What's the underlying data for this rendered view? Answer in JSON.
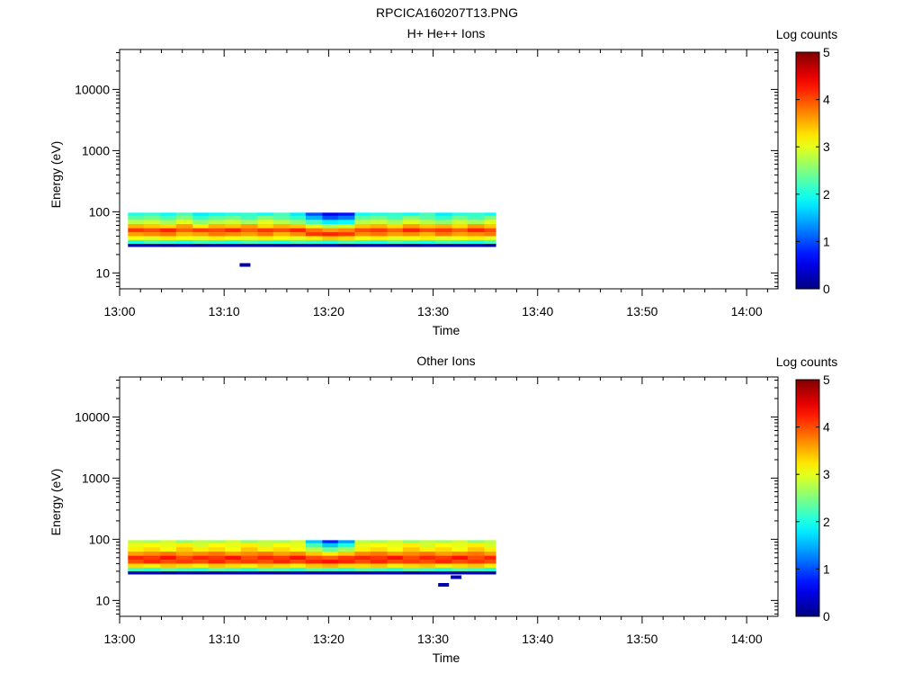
{
  "figure_title": "RPCICA160207T13.PNG",
  "chart_data": [
    {
      "type": "heatmap",
      "title": "H+ He++ Ions",
      "xlabel": "Time",
      "ylabel": "Energy (eV)",
      "x_ticks": [
        "13:00",
        "13:10",
        "13:20",
        "13:30",
        "13:40",
        "13:50",
        "14:00"
      ],
      "x_range_minutes": [
        0,
        63
      ],
      "y_scale": "log",
      "y_ticks": [
        {
          "value": 10,
          "label": "10"
        },
        {
          "value": 100,
          "label": "100"
        },
        {
          "value": 1000,
          "label": "1000"
        },
        {
          "value": 10000,
          "label": "10000"
        }
      ],
      "y_range": [
        5.5,
        45000
      ],
      "colorbar": {
        "label": "Log counts",
        "range": [
          0,
          5
        ],
        "ticks": [
          "0",
          "1",
          "2",
          "3",
          "4",
          "5"
        ]
      },
      "data_time_range_minutes": [
        0.8,
        36
      ],
      "energy_levels_eV": [
        93,
        80,
        68,
        58,
        50,
        43,
        37,
        32,
        28
      ],
      "time_bins": [
        {
          "t": 0.8,
          "v": [
            2.0,
            2.3,
            2.8,
            3.5,
            4.1,
            3.6,
            3.1,
            2.0,
            0.3
          ]
        },
        {
          "t": 2.3,
          "v": [
            2.1,
            2.4,
            2.9,
            3.4,
            4.0,
            3.7,
            3.0,
            2.2,
            0.3
          ]
        },
        {
          "t": 3.9,
          "v": [
            1.9,
            2.2,
            2.7,
            3.3,
            4.2,
            3.8,
            3.2,
            2.1,
            0.2
          ]
        },
        {
          "t": 5.4,
          "v": [
            2.2,
            2.5,
            3.0,
            3.6,
            3.9,
            3.5,
            3.1,
            2.0,
            0.3
          ]
        },
        {
          "t": 7.0,
          "v": [
            1.8,
            2.1,
            2.6,
            3.2,
            4.1,
            3.6,
            3.0,
            2.2,
            0.2
          ]
        },
        {
          "t": 8.5,
          "v": [
            1.9,
            2.3,
            2.8,
            3.5,
            4.0,
            3.8,
            3.2,
            2.1,
            0.3
          ]
        },
        {
          "t": 10.1,
          "v": [
            2.0,
            2.4,
            2.9,
            3.4,
            4.2,
            3.7,
            3.1,
            2.0,
            0.3
          ]
        },
        {
          "t": 11.6,
          "v": [
            2.1,
            2.2,
            2.7,
            3.6,
            3.9,
            3.6,
            3.0,
            2.2,
            0.3
          ]
        },
        {
          "t": 13.2,
          "v": [
            1.9,
            2.5,
            3.0,
            3.3,
            4.1,
            3.8,
            3.2,
            2.1,
            0.3
          ]
        },
        {
          "t": 14.7,
          "v": [
            2.2,
            2.3,
            2.8,
            3.5,
            4.0,
            3.5,
            3.1,
            2.0,
            0.2
          ]
        },
        {
          "t": 16.3,
          "v": [
            1.8,
            2.1,
            2.6,
            3.4,
            4.2,
            3.7,
            3.0,
            2.2,
            0.3
          ]
        },
        {
          "t": 17.8,
          "v": [
            1.0,
            1.5,
            2.2,
            3.0,
            3.8,
            4.1,
            3.2,
            2.1,
            0.3
          ]
        },
        {
          "t": 19.4,
          "v": [
            0.6,
            1.0,
            1.8,
            2.7,
            3.6,
            4.2,
            3.4,
            2.0,
            0.3
          ]
        },
        {
          "t": 20.9,
          "v": [
            0.7,
            1.2,
            1.9,
            2.9,
            3.7,
            4.1,
            3.3,
            2.2,
            0.2
          ]
        },
        {
          "t": 22.5,
          "v": [
            1.9,
            2.3,
            2.8,
            3.4,
            4.0,
            3.7,
            3.1,
            2.1,
            0.3
          ]
        },
        {
          "t": 24.0,
          "v": [
            2.0,
            2.4,
            2.9,
            3.5,
            4.1,
            3.8,
            3.2,
            2.0,
            0.3
          ]
        },
        {
          "t": 25.6,
          "v": [
            2.1,
            2.2,
            2.7,
            3.3,
            3.9,
            3.6,
            3.0,
            2.2,
            0.3
          ]
        },
        {
          "t": 27.1,
          "v": [
            1.9,
            2.5,
            3.0,
            3.6,
            4.2,
            3.7,
            3.1,
            2.1,
            0.2
          ]
        },
        {
          "t": 28.7,
          "v": [
            2.2,
            2.3,
            2.8,
            3.4,
            4.0,
            3.5,
            3.2,
            2.0,
            0.3
          ]
        },
        {
          "t": 30.2,
          "v": [
            1.8,
            2.1,
            2.6,
            3.5,
            4.1,
            3.8,
            3.0,
            2.2,
            0.3
          ]
        },
        {
          "t": 31.8,
          "v": [
            2.0,
            2.4,
            2.9,
            3.3,
            3.9,
            3.6,
            3.1,
            2.1,
            0.3
          ]
        },
        {
          "t": 33.3,
          "v": [
            2.1,
            2.2,
            2.7,
            3.6,
            4.2,
            3.7,
            3.2,
            2.0,
            0.3
          ]
        },
        {
          "t": 34.9,
          "v": [
            1.9,
            2.5,
            3.0,
            3.4,
            4.0,
            3.8,
            3.0,
            2.2,
            0.2
          ]
        }
      ],
      "isolated_points": [
        {
          "t": 12.0,
          "e": 13.5,
          "v": 0.2
        }
      ]
    },
    {
      "type": "heatmap",
      "title": "Other Ions",
      "xlabel": "Time",
      "ylabel": "Energy (eV)",
      "x_ticks": [
        "13:00",
        "13:10",
        "13:20",
        "13:30",
        "13:40",
        "13:50",
        "14:00"
      ],
      "x_range_minutes": [
        0,
        63
      ],
      "y_scale": "log",
      "y_ticks": [
        {
          "value": 10,
          "label": "10"
        },
        {
          "value": 100,
          "label": "100"
        },
        {
          "value": 1000,
          "label": "1000"
        },
        {
          "value": 10000,
          "label": "10000"
        }
      ],
      "y_range": [
        5.5,
        45000
      ],
      "colorbar": {
        "label": "Log counts",
        "range": [
          0,
          5
        ],
        "ticks": [
          "0",
          "1",
          "2",
          "3",
          "4",
          "5"
        ]
      },
      "data_time_range_minutes": [
        0.8,
        36
      ],
      "energy_levels_eV": [
        93,
        80,
        68,
        58,
        50,
        43,
        37,
        32,
        28
      ],
      "time_bins": [
        {
          "t": 0.8,
          "v": [
            2.8,
            3.0,
            3.2,
            3.6,
            4.2,
            4.0,
            3.3,
            2.2,
            0.3
          ]
        },
        {
          "t": 2.3,
          "v": [
            2.7,
            3.1,
            3.3,
            3.7,
            4.1,
            4.2,
            3.2,
            2.1,
            0.3
          ]
        },
        {
          "t": 3.9,
          "v": [
            2.9,
            3.0,
            3.1,
            3.8,
            4.3,
            4.0,
            3.4,
            2.3,
            0.2
          ]
        },
        {
          "t": 5.4,
          "v": [
            2.6,
            3.2,
            3.4,
            3.6,
            4.0,
            4.1,
            3.3,
            2.2,
            0.3
          ]
        },
        {
          "t": 7.0,
          "v": [
            2.8,
            2.9,
            3.2,
            3.7,
            4.2,
            4.0,
            3.2,
            2.1,
            0.2
          ]
        },
        {
          "t": 8.5,
          "v": [
            2.7,
            3.1,
            3.3,
            3.8,
            4.1,
            4.2,
            3.4,
            2.3,
            0.3
          ]
        },
        {
          "t": 10.1,
          "v": [
            2.9,
            3.0,
            3.1,
            3.6,
            4.3,
            4.0,
            3.3,
            2.2,
            0.3
          ]
        },
        {
          "t": 11.6,
          "v": [
            2.6,
            3.2,
            3.4,
            3.7,
            4.0,
            4.1,
            3.2,
            2.1,
            0.3
          ]
        },
        {
          "t": 13.2,
          "v": [
            2.8,
            2.9,
            3.2,
            3.8,
            4.2,
            4.0,
            3.4,
            2.3,
            0.3
          ]
        },
        {
          "t": 14.7,
          "v": [
            2.7,
            3.1,
            3.3,
            3.6,
            4.1,
            4.2,
            3.3,
            2.2,
            0.2
          ]
        },
        {
          "t": 16.3,
          "v": [
            2.9,
            3.0,
            3.1,
            3.7,
            4.3,
            4.0,
            3.2,
            2.1,
            0.3
          ]
        },
        {
          "t": 17.8,
          "v": [
            1.6,
            2.2,
            2.8,
            3.4,
            4.0,
            4.2,
            3.4,
            2.3,
            0.3
          ]
        },
        {
          "t": 19.4,
          "v": [
            0.8,
            1.6,
            2.4,
            3.2,
            3.9,
            4.3,
            3.5,
            2.2,
            0.3
          ]
        },
        {
          "t": 20.9,
          "v": [
            1.4,
            2.0,
            2.7,
            3.4,
            4.1,
            4.2,
            3.3,
            2.1,
            0.2
          ]
        },
        {
          "t": 22.5,
          "v": [
            2.8,
            3.0,
            3.2,
            3.7,
            4.2,
            4.0,
            3.3,
            2.3,
            0.3
          ]
        },
        {
          "t": 24.0,
          "v": [
            2.7,
            3.1,
            3.3,
            3.8,
            4.1,
            4.2,
            3.4,
            2.2,
            0.3
          ]
        },
        {
          "t": 25.6,
          "v": [
            2.9,
            3.0,
            3.1,
            3.6,
            4.3,
            4.0,
            3.2,
            2.1,
            0.3
          ]
        },
        {
          "t": 27.1,
          "v": [
            2.6,
            3.2,
            3.4,
            3.7,
            4.0,
            4.1,
            3.3,
            2.3,
            0.2
          ]
        },
        {
          "t": 28.7,
          "v": [
            2.8,
            2.9,
            3.2,
            3.8,
            4.2,
            4.0,
            3.4,
            2.2,
            0.3
          ]
        },
        {
          "t": 30.2,
          "v": [
            2.7,
            3.1,
            3.3,
            3.6,
            4.1,
            4.2,
            3.2,
            2.1,
            0.3
          ]
        },
        {
          "t": 31.8,
          "v": [
            2.9,
            3.0,
            3.1,
            3.7,
            4.3,
            4.0,
            3.3,
            2.3,
            0.3
          ]
        },
        {
          "t": 33.3,
          "v": [
            2.6,
            3.2,
            3.4,
            3.8,
            4.0,
            4.1,
            3.4,
            2.2,
            0.3
          ]
        },
        {
          "t": 34.9,
          "v": [
            2.8,
            2.9,
            3.2,
            3.6,
            4.2,
            4.0,
            3.2,
            2.1,
            0.2
          ]
        }
      ],
      "isolated_points": [
        {
          "t": 31.0,
          "e": 18,
          "v": 0.2
        },
        {
          "t": 32.2,
          "e": 24,
          "v": 0.2
        }
      ]
    }
  ]
}
